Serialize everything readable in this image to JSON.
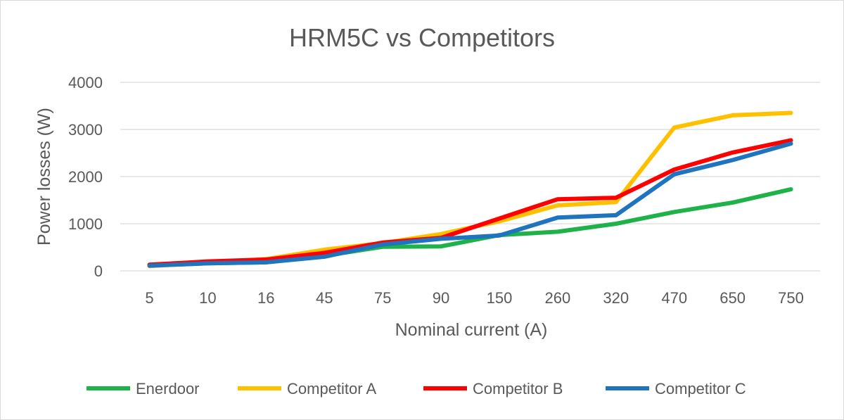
{
  "chart_data": {
    "type": "line",
    "title": "HRM5C vs Competitors",
    "xlabel": "Nominal current (A)",
    "ylabel": "Power losses (W)",
    "categories": [
      "5",
      "10",
      "16",
      "45",
      "75",
      "90",
      "150",
      "260",
      "320",
      "470",
      "650",
      "750"
    ],
    "ylim": [
      0,
      4000
    ],
    "yticks": [
      0,
      1000,
      2000,
      3000,
      4000
    ],
    "grid": true,
    "legend_position": "bottom",
    "series": [
      {
        "name": "Enerdoor",
        "color": "#1fb24a",
        "values": [
          110,
          160,
          180,
          320,
          510,
          520,
          760,
          830,
          1000,
          1250,
          1450,
          1730
        ]
      },
      {
        "name": "Competitor A",
        "color": "#ffc000",
        "values": [
          100,
          170,
          250,
          450,
          590,
          780,
          1050,
          1390,
          1460,
          3040,
          3300,
          3350
        ]
      },
      {
        "name": "Competitor B",
        "color": "#ff0000",
        "values": [
          130,
          200,
          240,
          380,
          600,
          700,
          1110,
          1520,
          1550,
          2150,
          2510,
          2770
        ]
      },
      {
        "name": "Competitor C",
        "color": "#1f74c0",
        "values": [
          110,
          160,
          180,
          300,
          560,
          680,
          750,
          1130,
          1180,
          2050,
          2350,
          2700
        ]
      }
    ]
  }
}
